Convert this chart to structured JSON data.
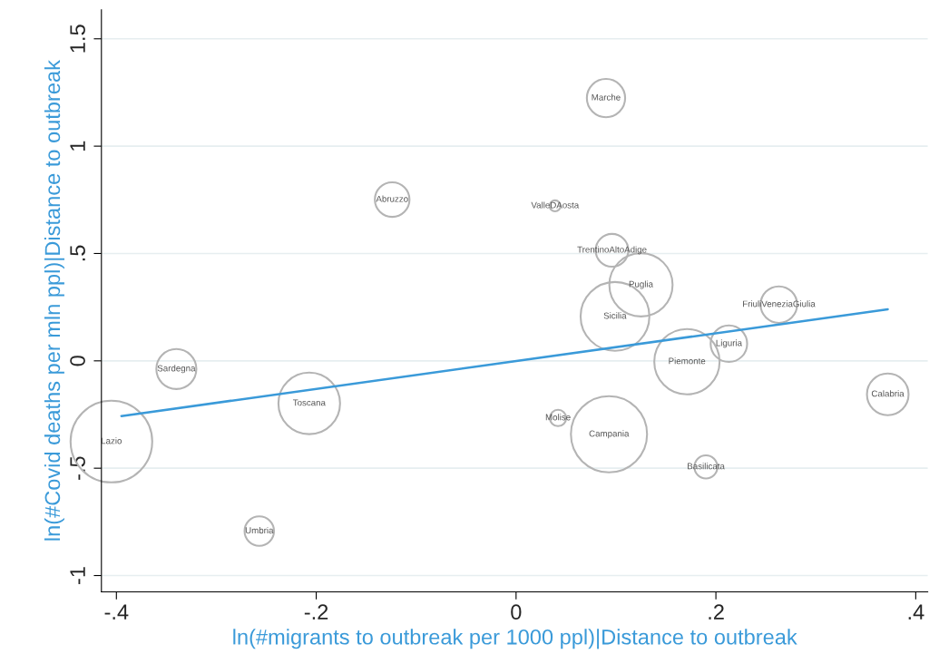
{
  "chart_data": {
    "type": "bubble",
    "xlabel": "ln(#migrants to outbreak per 1000 ppl)|Distance to outbreak",
    "ylabel": "ln(#Covid deaths per mln ppl)|Distance to outbreak",
    "xlim": [
      -0.415,
      0.412
    ],
    "ylim": [
      -1.076,
      1.635
    ],
    "xticks": [
      {
        "value": -0.4,
        "label": "-.4"
      },
      {
        "value": -0.2,
        "label": "-.2"
      },
      0,
      {
        "value": 0.2,
        "label": ".2"
      },
      {
        "value": 0.4,
        "label": ".4"
      }
    ],
    "yticks": [
      -1,
      {
        "value": -0.5,
        "label": "-.5"
      },
      0,
      {
        "value": 0.5,
        "label": ".5"
      },
      1,
      1.5
    ],
    "grid": "y",
    "legend": false,
    "series": [
      {
        "color": "#b4b4b4",
        "x": [
          -0.405,
          -0.34,
          -0.257,
          -0.207,
          -0.124,
          0.039,
          0.09,
          0.096,
          0.125,
          0.099,
          0.042,
          0.093,
          0.171,
          0.213,
          0.263,
          0.19,
          0.372
        ],
        "values": [
          -0.376,
          -0.038,
          -0.793,
          -0.198,
          0.751,
          0.722,
          1.224,
          0.515,
          0.354,
          0.207,
          -0.266,
          -0.342,
          -0.004,
          0.08,
          0.262,
          -0.494,
          -0.156
        ],
        "sizes": [
          1,
          0.24,
          0.13,
          0.57,
          0.18,
          0.018,
          0.22,
          0.16,
          0.6,
          0.71,
          0.04,
          0.87,
          0.64,
          0.2,
          0.2,
          0.08,
          0.26
        ]
      },
      {
        "type": "line",
        "color": "#3a9ad9",
        "x": [
          -0.395,
          0.372
        ],
        "values": [
          -0.257,
          0.24
        ]
      }
    ],
    "annotations": [
      {
        "text": "Lazio",
        "x": -0.405,
        "y": -0.376
      },
      {
        "text": "Sardegna",
        "x": -0.34,
        "y": -0.038
      },
      {
        "text": "Umbria",
        "x": -0.257,
        "y": -0.793
      },
      {
        "text": "Toscana",
        "x": -0.207,
        "y": -0.198
      },
      {
        "text": "Abruzzo",
        "x": -0.124,
        "y": 0.751
      },
      {
        "text": "ValleDAosta",
        "x": 0.039,
        "y": 0.722
      },
      {
        "text": "Marche",
        "x": 0.09,
        "y": 1.224
      },
      {
        "text": "TrentinoAltoAdige",
        "x": 0.096,
        "y": 0.515
      },
      {
        "text": "Puglia",
        "x": 0.125,
        "y": 0.354
      },
      {
        "text": "Sicilia",
        "x": 0.099,
        "y": 0.207
      },
      {
        "text": "Molise",
        "x": 0.042,
        "y": -0.266
      },
      {
        "text": "Campania",
        "x": 0.093,
        "y": -0.342
      },
      {
        "text": "Piemonte",
        "x": 0.171,
        "y": -0.004
      },
      {
        "text": "Liguria",
        "x": 0.213,
        "y": 0.08
      },
      {
        "text": "FriuliVeneziaGiulia",
        "x": 0.263,
        "y": 0.262
      },
      {
        "text": "Basilicata",
        "x": 0.19,
        "y": -0.494
      },
      {
        "text": "Calabria",
        "x": 0.372,
        "y": -0.156
      }
    ]
  }
}
